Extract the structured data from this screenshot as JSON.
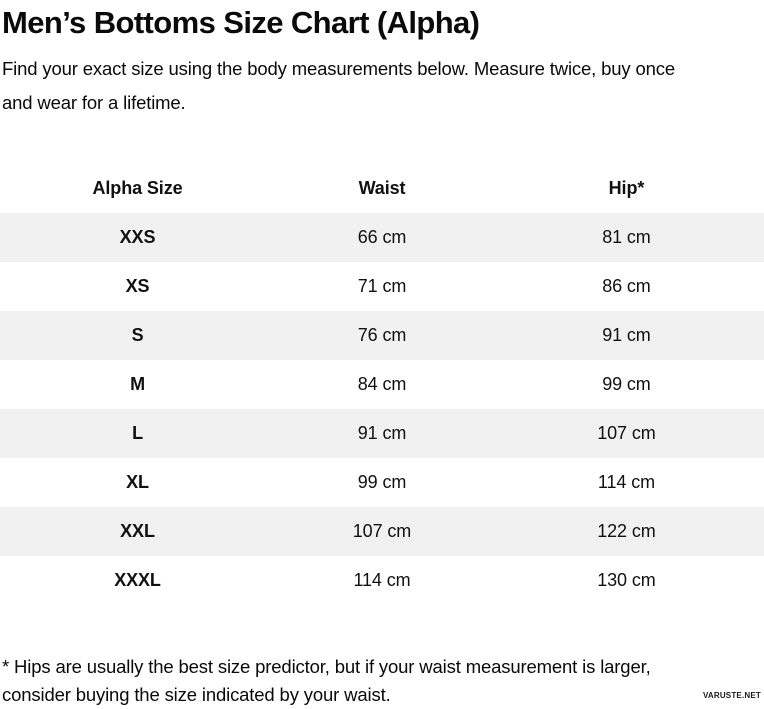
{
  "page": {
    "title": "Men’s Bottoms Size Chart (Alpha)",
    "intro": {
      "line1": "Find your exact size using the body measurements below. Measure twice, buy once",
      "line2": "and wear for a lifetime."
    },
    "footnote": {
      "line1": "* Hips are usually the best size predictor, but if your waist measurement is larger,",
      "line2": "consider buying the size indicated by your waist."
    },
    "watermark": "VARUSTE.NET"
  },
  "table": {
    "columns": [
      "Alpha Size",
      "Waist",
      "Hip*"
    ],
    "rows": [
      {
        "size": "XXS",
        "waist": "66 cm",
        "hip": "81 cm"
      },
      {
        "size": "XS",
        "waist": "71 cm",
        "hip": "86 cm"
      },
      {
        "size": "S",
        "waist": "76 cm",
        "hip": "91 cm"
      },
      {
        "size": "M",
        "waist": "84 cm",
        "hip": "99 cm"
      },
      {
        "size": "L",
        "waist": "91 cm",
        "hip": "107 cm"
      },
      {
        "size": "XL",
        "waist": "99 cm",
        "hip": "114 cm"
      },
      {
        "size": "XXL",
        "waist": "107 cm",
        "hip": "122 cm"
      },
      {
        "size": "XXXL",
        "waist": "114 cm",
        "hip": "130 cm"
      }
    ]
  },
  "chart_data": {
    "type": "table",
    "title": "Men’s Bottoms Size Chart (Alpha)",
    "columns": [
      "Alpha Size",
      "Waist",
      "Hip*"
    ],
    "rows": [
      [
        "XXS",
        "66 cm",
        "81 cm"
      ],
      [
        "XS",
        "71 cm",
        "86 cm"
      ],
      [
        "S",
        "76 cm",
        "91 cm"
      ],
      [
        "M",
        "84 cm",
        "99 cm"
      ],
      [
        "L",
        "91 cm",
        "107 cm"
      ],
      [
        "XL",
        "99 cm",
        "114 cm"
      ],
      [
        "XXL",
        "107 cm",
        "122 cm"
      ],
      [
        "XXXL",
        "114 cm",
        "130 cm"
      ]
    ]
  },
  "colors": {
    "row_stripe": "#f1f1f1",
    "text": "#0a0a0a",
    "background": "#ffffff"
  }
}
